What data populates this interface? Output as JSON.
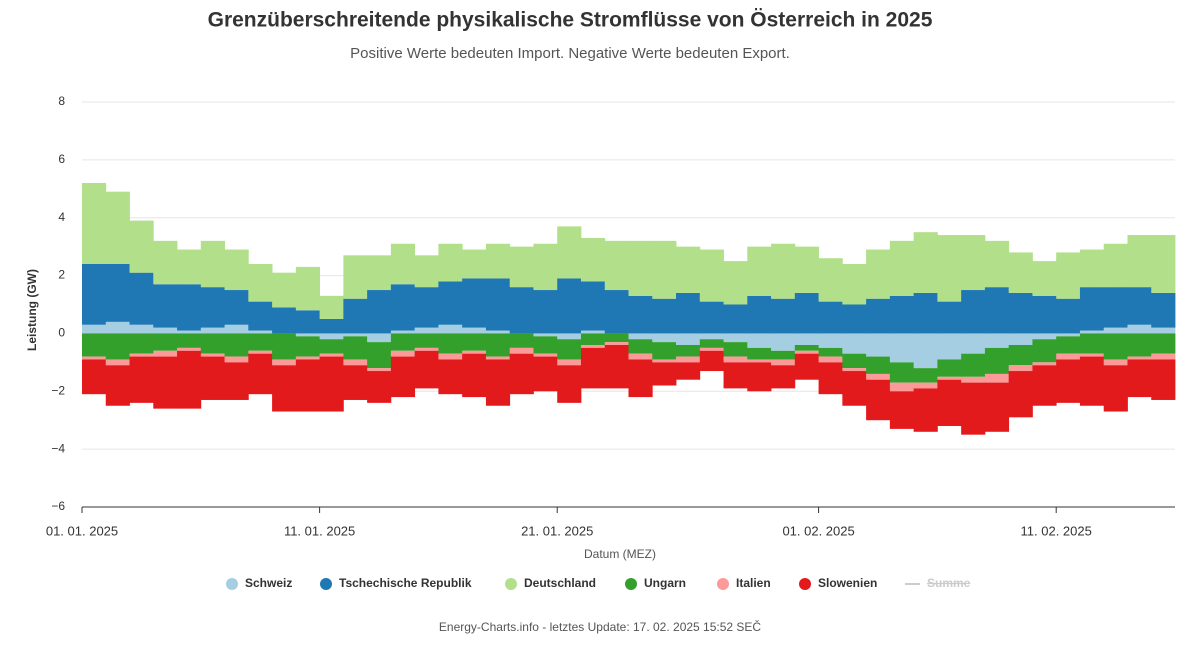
{
  "chart_data": {
    "type": "area",
    "stacked": true,
    "title": "Grenzüberschreitende physikalische Stromflüsse von Österreich in 2025",
    "subtitle": "Positive Werte bedeuten Import. Negative Werte bedeuten Export.",
    "x_label": "Datum (MEZ)",
    "y_label": "Leistung (GW)",
    "credit": "Energy-Charts.info - letztes Update: 17. 02. 2025 15:52 SEČ",
    "x": [
      "2025-01-01",
      "2025-01-02",
      "2025-01-03",
      "2025-01-04",
      "2025-01-05",
      "2025-01-06",
      "2025-01-07",
      "2025-01-08",
      "2025-01-09",
      "2025-01-10",
      "2025-01-11",
      "2025-01-12",
      "2025-01-13",
      "2025-01-14",
      "2025-01-15",
      "2025-01-16",
      "2025-01-17",
      "2025-01-18",
      "2025-01-19",
      "2025-01-20",
      "2025-01-21",
      "2025-01-22",
      "2025-01-23",
      "2025-01-24",
      "2025-01-25",
      "2025-01-26",
      "2025-01-27",
      "2025-01-28",
      "2025-01-29",
      "2025-01-30",
      "2025-01-31",
      "2025-02-01",
      "2025-02-02",
      "2025-02-03",
      "2025-02-04",
      "2025-02-05",
      "2025-02-06",
      "2025-02-07",
      "2025-02-08",
      "2025-02-09",
      "2025-02-10",
      "2025-02-11",
      "2025-02-12",
      "2025-02-13",
      "2025-02-14",
      "2025-02-15"
    ],
    "xlim": [
      "2025-01-01",
      "2025-02-16"
    ],
    "xticks": [
      {
        "value": "2025-01-01",
        "label": "01. 01. 2025"
      },
      {
        "value": "2025-01-11",
        "label": "11. 01. 2025"
      },
      {
        "value": "2025-01-21",
        "label": "21. 01. 2025"
      },
      {
        "value": "2025-02-01",
        "label": "01. 02. 2025"
      },
      {
        "value": "2025-02-11",
        "label": "11. 02. 2025"
      }
    ],
    "ylim": [
      -6,
      8
    ],
    "yticks": [
      {
        "value": -6,
        "label": "−6"
      },
      {
        "value": -4,
        "label": "−4"
      },
      {
        "value": -2,
        "label": "−2"
      },
      0,
      2,
      4,
      6,
      8
    ],
    "grid": true,
    "legend": "bottom",
    "series": [
      {
        "name": "Schweiz",
        "color": "#a6cee3",
        "values": [
          0.3,
          0.4,
          0.3,
          0.2,
          0.1,
          0.2,
          0.3,
          0.1,
          0,
          -0.1,
          -0.2,
          -0.1,
          -0.3,
          0.1,
          0.2,
          0.3,
          0.2,
          0.1,
          0,
          -0.1,
          -0.2,
          0.1,
          0,
          -0.2,
          -0.3,
          -0.4,
          -0.2,
          -0.3,
          -0.5,
          -0.6,
          -0.4,
          -0.5,
          -0.7,
          -0.8,
          -1.0,
          -1.2,
          -0.9,
          -0.7,
          -0.5,
          -0.4,
          -0.2,
          -0.1,
          0.1,
          0.2,
          0.3,
          0.2
        ]
      },
      {
        "name": "Tschechische Republik",
        "color": "#1f78b4",
        "values": [
          2.1,
          2.0,
          1.8,
          1.5,
          1.6,
          1.4,
          1.2,
          1.0,
          0.9,
          0.8,
          0.5,
          1.2,
          1.5,
          1.6,
          1.4,
          1.5,
          1.7,
          1.8,
          1.6,
          1.5,
          1.9,
          1.7,
          1.5,
          1.3,
          1.2,
          1.4,
          1.1,
          1.0,
          1.3,
          1.2,
          1.4,
          1.1,
          1.0,
          1.2,
          1.3,
          1.4,
          1.1,
          1.5,
          1.6,
          1.4,
          1.3,
          1.2,
          1.5,
          1.4,
          1.3,
          1.2
        ]
      },
      {
        "name": "Deutschland",
        "color": "#b2df8a",
        "values": [
          2.8,
          2.5,
          1.8,
          1.5,
          1.2,
          1.6,
          1.4,
          1.3,
          1.2,
          1.5,
          0.8,
          1.5,
          1.2,
          1.4,
          1.1,
          1.3,
          1.0,
          1.2,
          1.4,
          1.6,
          1.8,
          1.5,
          1.7,
          1.9,
          2.0,
          1.6,
          1.8,
          1.5,
          1.7,
          1.9,
          1.6,
          1.5,
          1.4,
          1.7,
          1.9,
          2.1,
          2.3,
          1.9,
          1.6,
          1.4,
          1.2,
          1.6,
          1.3,
          1.5,
          1.8,
          2.0
        ]
      },
      {
        "name": "Ungarn",
        "color": "#33a02c",
        "values": [
          -0.8,
          -0.9,
          -0.7,
          -0.6,
          -0.5,
          -0.7,
          -0.8,
          -0.6,
          -0.9,
          -0.7,
          -0.5,
          -0.8,
          -0.9,
          -0.6,
          -0.5,
          -0.7,
          -0.6,
          -0.8,
          -0.5,
          -0.6,
          -0.7,
          -0.4,
          -0.3,
          -0.5,
          -0.6,
          -0.4,
          -0.3,
          -0.5,
          -0.4,
          -0.3,
          -0.2,
          -0.3,
          -0.5,
          -0.6,
          -0.7,
          -0.5,
          -0.6,
          -0.8,
          -0.9,
          -0.7,
          -0.8,
          -0.6,
          -0.7,
          -0.9,
          -0.8,
          -0.7
        ]
      },
      {
        "name": "Italien",
        "color": "#fb9a99",
        "values": [
          -0.1,
          -0.2,
          -0.1,
          -0.2,
          -0.1,
          -0.1,
          -0.2,
          -0.1,
          -0.2,
          -0.1,
          -0.1,
          -0.2,
          -0.1,
          -0.2,
          -0.1,
          -0.2,
          -0.1,
          -0.1,
          -0.2,
          -0.1,
          -0.2,
          -0.1,
          -0.1,
          -0.2,
          -0.1,
          -0.2,
          -0.1,
          -0.2,
          -0.1,
          -0.2,
          -0.1,
          -0.2,
          -0.1,
          -0.2,
          -0.3,
          -0.2,
          -0.1,
          -0.2,
          -0.3,
          -0.2,
          -0.1,
          -0.2,
          -0.1,
          -0.2,
          -0.1,
          -0.2
        ]
      },
      {
        "name": "Slowenien",
        "color": "#e31a1c",
        "values": [
          -1.2,
          -1.4,
          -1.6,
          -1.8,
          -2.0,
          -1.5,
          -1.3,
          -1.4,
          -1.6,
          -1.8,
          -1.9,
          -1.2,
          -1.1,
          -1.4,
          -1.3,
          -1.2,
          -1.5,
          -1.6,
          -1.4,
          -1.2,
          -1.3,
          -1.4,
          -1.5,
          -1.3,
          -0.8,
          -0.6,
          -0.7,
          -0.9,
          -1.0,
          -0.8,
          -0.9,
          -1.1,
          -1.2,
          -1.4,
          -1.3,
          -1.5,
          -1.6,
          -1.8,
          -1.7,
          -1.6,
          -1.4,
          -1.5,
          -1.7,
          -1.6,
          -1.3,
          -1.4
        ]
      },
      {
        "name": "Summe",
        "color": "#cccccc",
        "hidden": true
      }
    ]
  }
}
